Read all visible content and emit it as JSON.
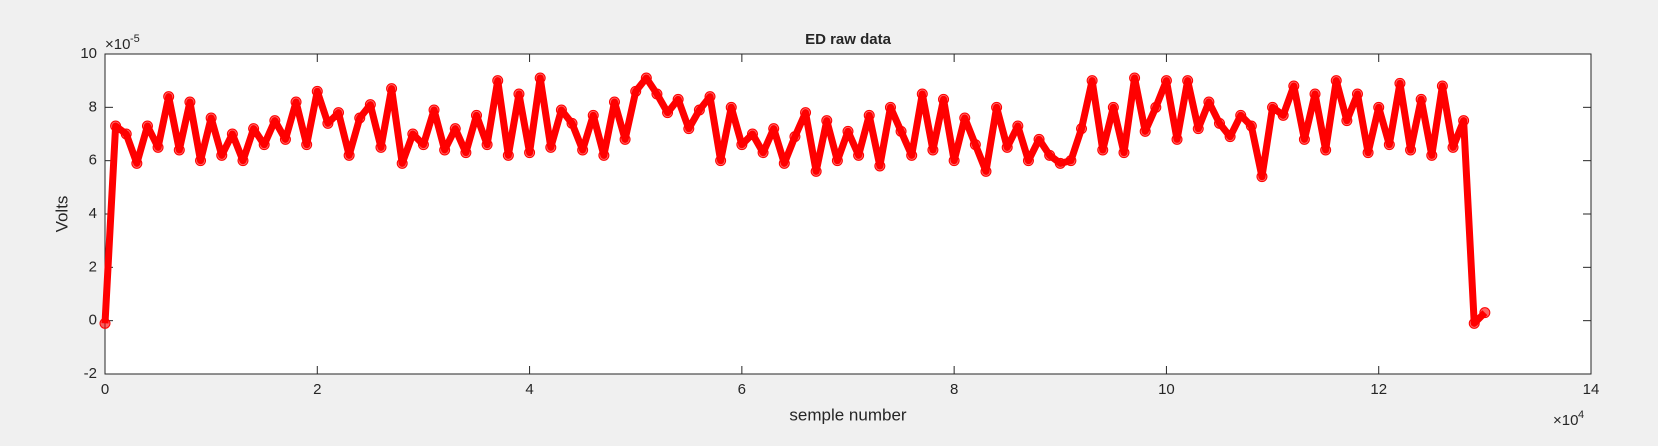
{
  "chart_data": {
    "type": "line",
    "title": "ED  raw data",
    "x_label": "semple number",
    "y_label": "Volts",
    "x_multiplier": {
      "base": "×10",
      "power": "4"
    },
    "y_multiplier": {
      "base": "×10",
      "power": "-5"
    },
    "xlim": [
      0,
      14
    ],
    "xticks": [
      0,
      2,
      4,
      6,
      8,
      10,
      12,
      14
    ],
    "ylim": [
      -2,
      10
    ],
    "yticks": [
      -2,
      0,
      2,
      4,
      6,
      8,
      10
    ],
    "grid": false,
    "x": [
      0,
      0.1,
      0.2,
      0.3,
      0.4,
      0.5,
      0.6,
      0.7,
      0.8,
      0.9,
      1,
      1.1,
      1.2,
      1.3,
      1.4,
      1.5,
      1.6,
      1.7,
      1.8,
      1.9,
      2,
      2.1,
      2.2,
      2.3,
      2.4,
      2.5,
      2.6,
      2.7,
      2.8,
      2.9,
      3,
      3.1,
      3.2,
      3.3,
      3.4,
      3.5,
      3.6,
      3.7,
      3.8,
      3.9,
      4,
      4.1,
      4.2,
      4.3,
      4.4,
      4.5,
      4.6,
      4.7,
      4.8,
      4.9,
      5,
      5.1,
      5.2,
      5.3,
      5.4,
      5.5,
      5.6,
      5.7,
      5.8,
      5.9,
      6,
      6.1,
      6.2,
      6.3,
      6.4,
      6.5,
      6.6,
      6.7,
      6.8,
      6.9,
      7,
      7.1,
      7.2,
      7.3,
      7.4,
      7.5,
      7.6,
      7.7,
      7.8,
      7.9,
      8,
      8.1,
      8.2,
      8.3,
      8.4,
      8.5,
      8.6,
      8.7,
      8.8,
      8.9,
      9,
      9.1,
      9.2,
      9.3,
      9.4,
      9.5,
      9.6,
      9.7,
      9.8,
      9.9,
      10,
      10.1,
      10.2,
      10.3,
      10.4,
      10.5,
      10.6,
      10.7,
      10.8,
      10.9,
      11,
      11.1,
      11.2,
      11.3,
      11.4,
      11.5,
      11.6,
      11.7,
      11.8,
      11.9,
      12,
      12.1,
      12.2,
      12.3,
      12.4,
      12.5,
      12.6,
      12.7,
      12.8,
      12.9,
      13
    ],
    "series": [
      {
        "color": "#ff0000",
        "values": [
          -0.1,
          7.3,
          7.0,
          5.9,
          7.3,
          6.5,
          8.4,
          6.4,
          8.2,
          6.0,
          7.6,
          6.2,
          7.0,
          6.0,
          7.2,
          6.6,
          7.5,
          6.8,
          8.2,
          6.6,
          8.6,
          7.4,
          7.8,
          6.2,
          7.6,
          8.1,
          6.5,
          8.7,
          5.9,
          7.0,
          6.6,
          7.9,
          6.4,
          7.2,
          6.3,
          7.7,
          6.6,
          9.0,
          6.2,
          8.5,
          6.3,
          9.1,
          6.5,
          7.9,
          7.4,
          6.4,
          7.7,
          6.2,
          8.2,
          6.8,
          8.6,
          9.1,
          8.5,
          7.8,
          8.3,
          7.2,
          7.9,
          8.4,
          6.0,
          8.0,
          6.6,
          7.0,
          6.3,
          7.2,
          5.9,
          6.9,
          7.8,
          5.6,
          7.5,
          6.0,
          7.1,
          6.2,
          7.7,
          5.8,
          8.0,
          7.1,
          6.2,
          8.5,
          6.4,
          8.3,
          6.0,
          7.6,
          6.6,
          5.6,
          8.0,
          6.5,
          7.3,
          6.0,
          6.8,
          6.2,
          5.9,
          6.0,
          7.2,
          9.0,
          6.4,
          8.0,
          6.3,
          9.1,
          7.1,
          8.0,
          9.0,
          6.8,
          9.0,
          7.2,
          8.2,
          7.4,
          6.9,
          7.7,
          7.3,
          5.4,
          8.0,
          7.7,
          8.8,
          6.8,
          8.5,
          6.4,
          9.0,
          7.5,
          8.5,
          6.3,
          8.0,
          6.6,
          8.9,
          6.4,
          8.3,
          6.2,
          8.8,
          6.5,
          7.5,
          -0.1,
          0.3
        ]
      }
    ]
  }
}
